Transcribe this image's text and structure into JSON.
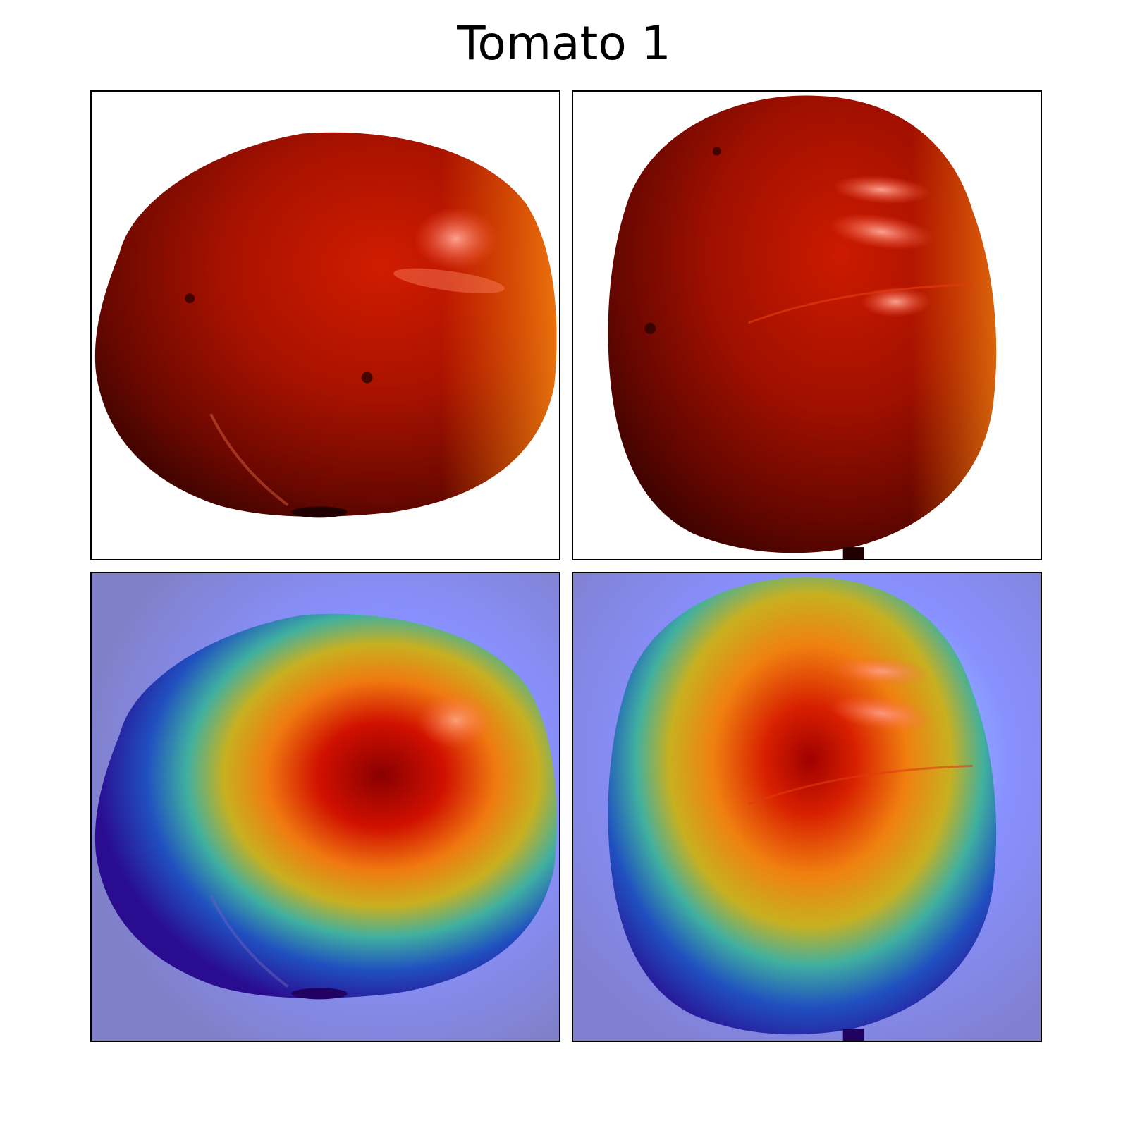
{
  "figure": {
    "title": "Tomato 1"
  },
  "colors": {
    "background": "#ffffff",
    "border": "#000000",
    "tomato_red": "#b81400",
    "tomato_dark": "#4a0500",
    "highlight": "#ff8f80",
    "heatmap_background": "#8080d0",
    "heatmap_hot": "#c00000",
    "heatmap_warm": "#f09010",
    "heatmap_mid": "#40c0a0",
    "heatmap_cold": "#2a10a0"
  },
  "panels": [
    {
      "id": "original-view-1",
      "kind": "photo"
    },
    {
      "id": "original-view-2",
      "kind": "photo"
    },
    {
      "id": "heatmap-view-1",
      "kind": "heatmap-overlay"
    },
    {
      "id": "heatmap-view-2",
      "kind": "heatmap-overlay"
    }
  ]
}
